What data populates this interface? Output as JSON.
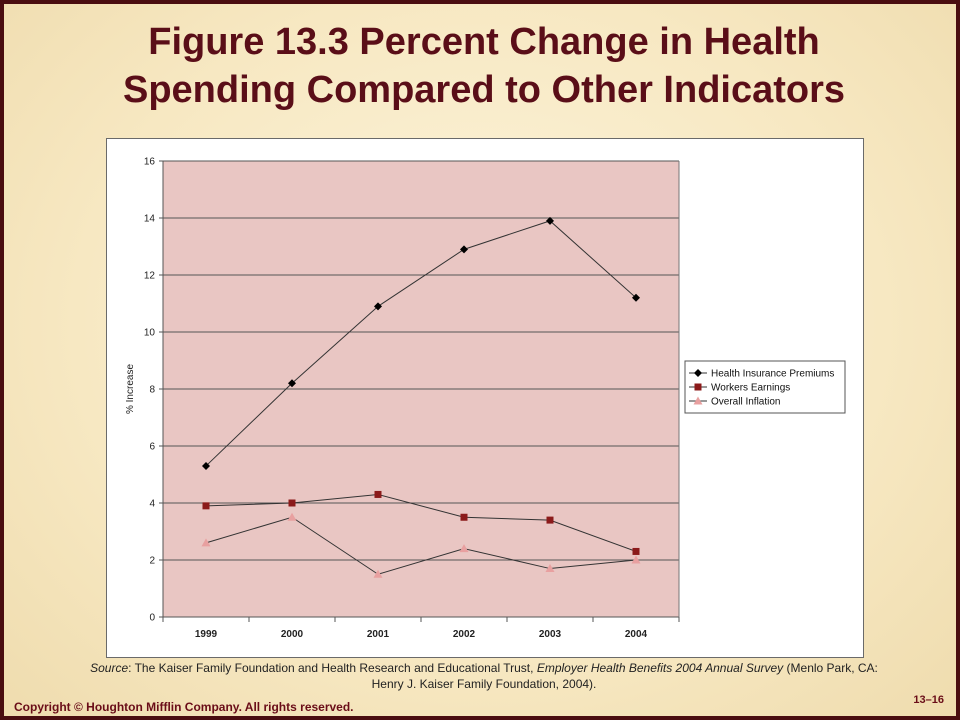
{
  "slide": {
    "title_line1": "Figure 13.3  Percent Change in Health",
    "title_line2": "Spending Compared to Other Indicators",
    "footer_left": "Copyright © Houghton Mifflin Company. All rights reserved.",
    "footer_right": "13–16",
    "source_label": "Source",
    "source_text1": ": The Kaiser Family Foundation and Health Research and Educational Trust, ",
    "source_italic": "Employer Health Benefits 2004 Annual Survey",
    "source_text2": " (Menlo Park, CA:",
    "source_line2": "Henry J. Kaiser Family Foundation, 2004)."
  },
  "colors": {
    "background": "#f7e8c2",
    "border": "#4a0d10",
    "title": "#5a0e18",
    "plot_bg": "#e9c6c3"
  },
  "chart_data": {
    "type": "line",
    "ylabel": "% Increase",
    "xlabel": "",
    "categories": [
      "1999",
      "2000",
      "2001",
      "2002",
      "2003",
      "2004"
    ],
    "ylim": [
      0,
      16
    ],
    "yticks": [
      0,
      2,
      4,
      6,
      8,
      10,
      12,
      14,
      16
    ],
    "grid": true,
    "legend_position": "right",
    "series": [
      {
        "name": "Health Insurance Premiums",
        "marker": "diamond",
        "color": "#000000",
        "values": [
          5.3,
          8.2,
          10.9,
          12.9,
          13.9,
          11.2
        ]
      },
      {
        "name": "Workers Earnings",
        "marker": "square",
        "color": "#8b1a1a",
        "values": [
          3.9,
          4.0,
          4.3,
          3.5,
          3.4,
          2.3
        ]
      },
      {
        "name": "Overall Inflation",
        "marker": "triangle",
        "color": "#e8a0a0",
        "values": [
          2.6,
          3.5,
          1.5,
          2.4,
          1.7,
          2.0
        ]
      }
    ]
  }
}
